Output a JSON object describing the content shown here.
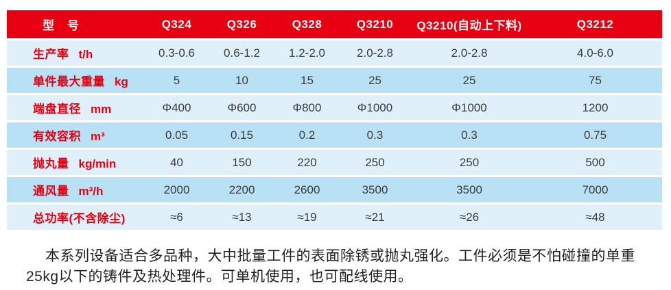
{
  "colors": {
    "header_red": "#E60012",
    "row_light_blue": "#DFF0FB",
    "row_dark_blue": "#B9E1F6",
    "label_red": "#E60012",
    "value_text": "#3A3A3A"
  },
  "table": {
    "header_label": "型　号",
    "columns": [
      "Q324",
      "Q326",
      "Q328",
      "Q3210",
      "Q3210(自动上下料)",
      "Q3212"
    ],
    "rows": [
      {
        "label": "生产率",
        "unit": "t/h",
        "values": [
          "0.3-0.6",
          "0.6-1.2",
          "1.2-2.0",
          "2.0-2.8",
          "2.0-2.8",
          "4.0-6.0"
        ]
      },
      {
        "label": "单件最大重量",
        "unit": "kg",
        "values": [
          "5",
          "10",
          "15",
          "25",
          "25",
          "75"
        ]
      },
      {
        "label": "端盘直径",
        "unit": "mm",
        "values": [
          "Φ400",
          "Φ600",
          "Φ800",
          "Φ1000",
          "Φ1000",
          "1200"
        ]
      },
      {
        "label": "有效容积",
        "unit": "m³",
        "values": [
          "0.05",
          "0.15",
          "0.2",
          "0.3",
          "0.3",
          "0.75"
        ]
      },
      {
        "label": "抛丸量",
        "unit": "kg/min",
        "values": [
          "40",
          "150",
          "220",
          "250",
          "250",
          "500"
        ]
      },
      {
        "label": "通风量",
        "unit": "m³/h",
        "values": [
          "2000",
          "2200",
          "2600",
          "3500",
          "3500",
          "7000"
        ]
      },
      {
        "label": "总功率(不含除尘)",
        "unit": "",
        "values": [
          "≈6",
          "≈13",
          "≈19",
          "≈21",
          "≈26",
          "≈48"
        ]
      }
    ]
  },
  "description": {
    "lines": [
      "本系列设备适合多品种，大中批量工件的表面除锈或抛丸强化。工件必须是不怕碰撞的单重",
      "25kg以下的铸件及热处理件。可单机使用，也可配线使用。"
    ]
  }
}
